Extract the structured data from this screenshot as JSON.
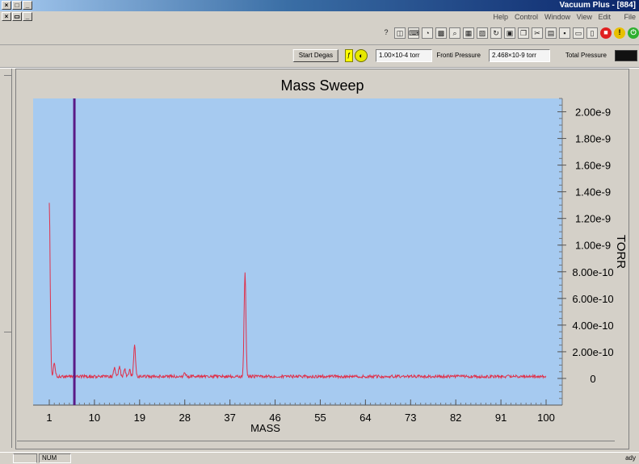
{
  "window": {
    "title": "Vacuum Plus - [884]"
  },
  "menu": {
    "items": [
      "File",
      "Edit",
      "View",
      "Window",
      "Control",
      "Help"
    ]
  },
  "toolbar": {
    "button_icons": [
      "power-on-icon",
      "info-icon",
      "stop-icon",
      "new-icon",
      "open-icon",
      "save-icon",
      "print-icon",
      "cut-icon",
      "copy-icon",
      "paste-icon",
      "refresh-icon",
      "image-icon",
      "chart-icon",
      "zoom-icon",
      "grid-icon",
      "gauge-icon",
      "keyboard-icon",
      "window-icon",
      "help-icon"
    ]
  },
  "status": {
    "total_pressure_label": "Total Pressure",
    "total_pressure_value": "2.468×10-9 torr",
    "foreline_pressure_label": "Fronti Pressure",
    "foreline_pressure_value": "1.00×10-4 torr",
    "degas_label": "Start Degas"
  },
  "statusbar": {
    "panel1": "NUM",
    "right_text": "ady"
  },
  "colors": {
    "plot_bg": "#a6caf0",
    "trace": "#e0304a",
    "cursor": "#5a1a86",
    "panel": "#d4d0c8"
  },
  "chart_data": {
    "type": "line",
    "title": "Mass Sweep",
    "xlabel": "MASS",
    "ylabel": "TORR",
    "mirrored": true,
    "xlim": [
      1,
      100
    ],
    "ylim": [
      -2e-10,
      2.1e-09
    ],
    "x_ticks": [
      1,
      10,
      19,
      28,
      37,
      46,
      55,
      64,
      73,
      82,
      91,
      100
    ],
    "x_tick_labels": [
      "1",
      "10",
      "19",
      "28",
      "37",
      "46",
      "55",
      "64",
      "73",
      "82",
      "91",
      "100"
    ],
    "y_ticks": [
      0,
      2e-10,
      4e-10,
      6e-10,
      8e-10,
      1e-09,
      1.2e-09,
      1.4e-09,
      1.6e-09,
      1.8e-09,
      2e-09
    ],
    "y_tick_labels": [
      "0",
      "2.00e-10",
      "4.00e-10",
      "6.00e-10",
      "8.00e-10",
      "1.00e-9",
      "1.20e-9",
      "1.40e-9",
      "1.60e-9",
      "1.80e-9",
      "2.00e-9"
    ],
    "cursor_x": 6,
    "series": [
      {
        "baseline": 1.5e-11,
        "peaks": [
          {
            "x": 1,
            "y": 1.3e-09
          },
          {
            "x": 2,
            "y": 1.1e-10
          },
          {
            "x": 14,
            "y": 6e-11
          },
          {
            "x": 15,
            "y": 7.5e-11
          },
          {
            "x": 16,
            "y": 6e-11
          },
          {
            "x": 17,
            "y": 5e-11
          },
          {
            "x": 18,
            "y": 2.3e-10
          },
          {
            "x": 28,
            "y": 3e-11
          },
          {
            "x": 40,
            "y": 7.8e-10
          }
        ]
      }
    ]
  }
}
